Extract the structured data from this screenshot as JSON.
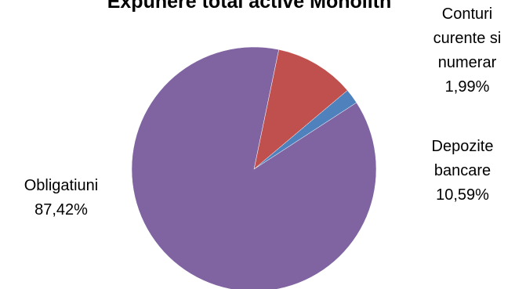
{
  "chart_data": {
    "type": "pie",
    "title": "Expunere total active Monolith",
    "slices": [
      {
        "name": "Conturi curente si numerar",
        "value": 1.99,
        "value_label": "1,99%",
        "label_lines": [
          "Conturi",
          "curente si",
          "numerar",
          "1,99%"
        ],
        "color": "#4F81BD"
      },
      {
        "name": "Depozite bancare",
        "value": 10.59,
        "value_label": "10,59%",
        "label_lines": [
          "Depozite",
          "bancare",
          "10,59%"
        ],
        "color": "#C0504D"
      },
      {
        "name": "Obligatiuni",
        "value": 87.42,
        "value_label": "87,42%",
        "label_lines": [
          "Obligatiuni",
          "87,42%"
        ],
        "color": "#8064A2"
      }
    ],
    "legend": "none",
    "grid": false
  }
}
